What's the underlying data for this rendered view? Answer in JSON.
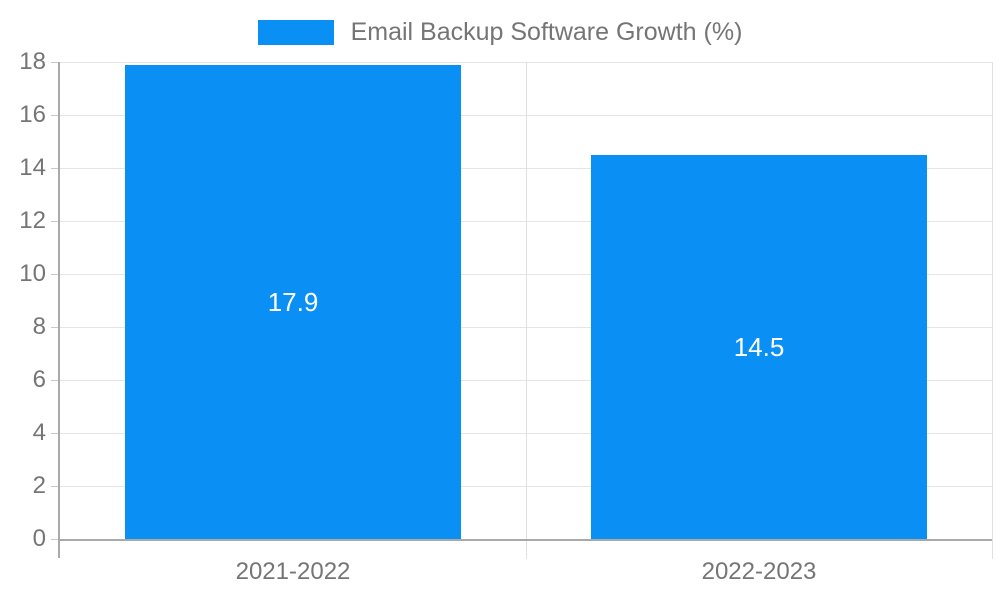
{
  "legend": {
    "label": "Email Backup Software Growth (%)"
  },
  "chart_data": {
    "type": "bar",
    "title": "Email Backup Software Growth (%)",
    "categories": [
      "2021-2022",
      "2022-2023"
    ],
    "series": [
      {
        "name": "Email Backup Software Growth (%)",
        "values": [
          17.9,
          14.5
        ]
      }
    ],
    "data_labels": [
      "17.9",
      "14.5"
    ],
    "xlabel": "",
    "ylabel": "",
    "ylim": [
      0,
      18
    ],
    "ytick_step": 2,
    "grid": true,
    "legend_position": "top-center",
    "colors": {
      "bar": "#0a90f5",
      "data_label": "#ffffff",
      "axis_text": "#757575",
      "gridline": "#e5e5e5",
      "category_line": "#e0e0e0",
      "axis_line": "#a9a9a9",
      "tick_mark": "#c9c9c9",
      "background": "#ffffff"
    }
  }
}
